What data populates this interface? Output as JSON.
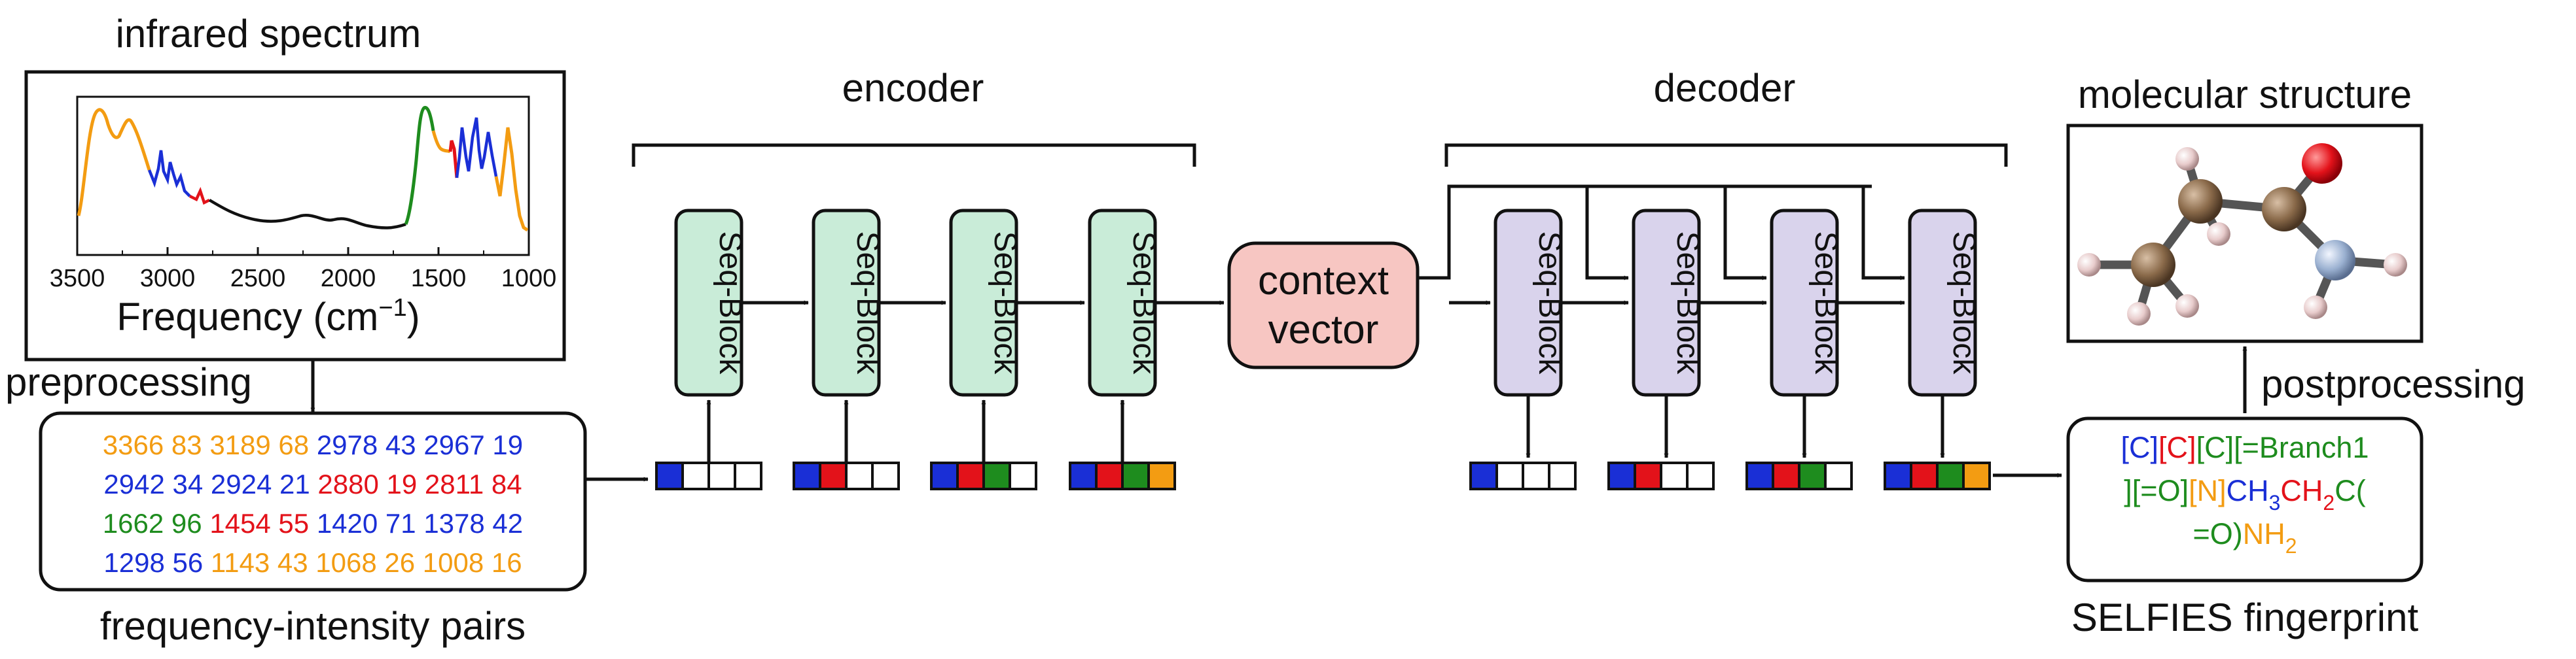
{
  "titles": {
    "spectrum": "infrared spectrum",
    "encoder": "encoder",
    "decoder": "decoder",
    "molecule": "molecular structure",
    "preprocessing": "preprocessing",
    "postprocessing": "postprocessing",
    "pairs": "frequency-intensity pairs",
    "selfies": "SELFIES fingerprint"
  },
  "spectrum_plot": {
    "xlabel_prefix": "Frequency (cm",
    "xlabel_sup": "−1",
    "xlabel_suffix": ")",
    "xticks": [
      "3500",
      "3000",
      "2500",
      "2000",
      "1500",
      "1000"
    ],
    "xlim": [
      3500,
      1000
    ],
    "series_colors": {
      "orange": "#f39c12",
      "blue": "#1a2fd6",
      "red": "#e3121a",
      "green": "#1e8c1e",
      "black": "#111111"
    }
  },
  "seq_block_label": "Seq-Block",
  "context_vector": {
    "line1": "context",
    "line2": "vector"
  },
  "token_colors": [
    "#1a2fd6",
    "#e3121a",
    "#1e8c1e",
    "#f39c12"
  ],
  "pairs_rows": [
    [
      {
        "t": "3366 83",
        "c": "#f39c12"
      },
      {
        "t": "3189 68",
        "c": "#f39c12"
      },
      {
        "t": "2978 43",
        "c": "#1a2fd6"
      },
      {
        "t": "2967 19",
        "c": "#1a2fd6"
      }
    ],
    [
      {
        "t": "2942 34",
        "c": "#1a2fd6"
      },
      {
        "t": "2924 21",
        "c": "#1a2fd6"
      },
      {
        "t": "2880 19",
        "c": "#e3121a"
      },
      {
        "t": "2811 84",
        "c": "#e3121a"
      }
    ],
    [
      {
        "t": "1662 96",
        "c": "#1e8c1e"
      },
      {
        "t": "1454 55",
        "c": "#e3121a"
      },
      {
        "t": "1420 71",
        "c": "#1a2fd6"
      },
      {
        "t": "1378 42",
        "c": "#1a2fd6"
      }
    ],
    [
      {
        "t": "1298 56",
        "c": "#1a2fd6"
      },
      {
        "t": "1143 43",
        "c": "#f39c12"
      },
      {
        "t": "1068 26",
        "c": "#f39c12"
      },
      {
        "t": "1008 16",
        "c": "#f39c12"
      }
    ]
  ],
  "selfies_lines": [
    [
      {
        "t": "[C]",
        "c": "#1a2fd6"
      },
      {
        "t": "[C]",
        "c": "#e3121a"
      },
      {
        "t": "[C]",
        "c": "#1e8c1e"
      },
      {
        "t": "[=Branch1",
        "c": "#1e8c1e"
      }
    ],
    [
      {
        "t": "][=O]",
        "c": "#1e8c1e"
      },
      {
        "t": "[N]",
        "c": "#f39c12"
      },
      {
        "t": "CH",
        "c": "#1a2fd6"
      },
      {
        "t": "3",
        "c": "#1a2fd6",
        "sub": true
      },
      {
        "t": "CH",
        "c": "#e3121a"
      },
      {
        "t": "2",
        "c": "#e3121a",
        "sub": true
      },
      {
        "t": "C(",
        "c": "#1e8c1e"
      }
    ],
    [
      {
        "t": "=O)",
        "c": "#1e8c1e"
      },
      {
        "t": "NH",
        "c": "#f39c12"
      },
      {
        "t": "2",
        "c": "#f39c12",
        "sub": true
      }
    ]
  ],
  "atom_colors": {
    "carbon": "#8a6a4a",
    "oxygen": "#e3121a",
    "nitrogen": "#9ab0d0",
    "hydrogen": "#e8cccc"
  }
}
